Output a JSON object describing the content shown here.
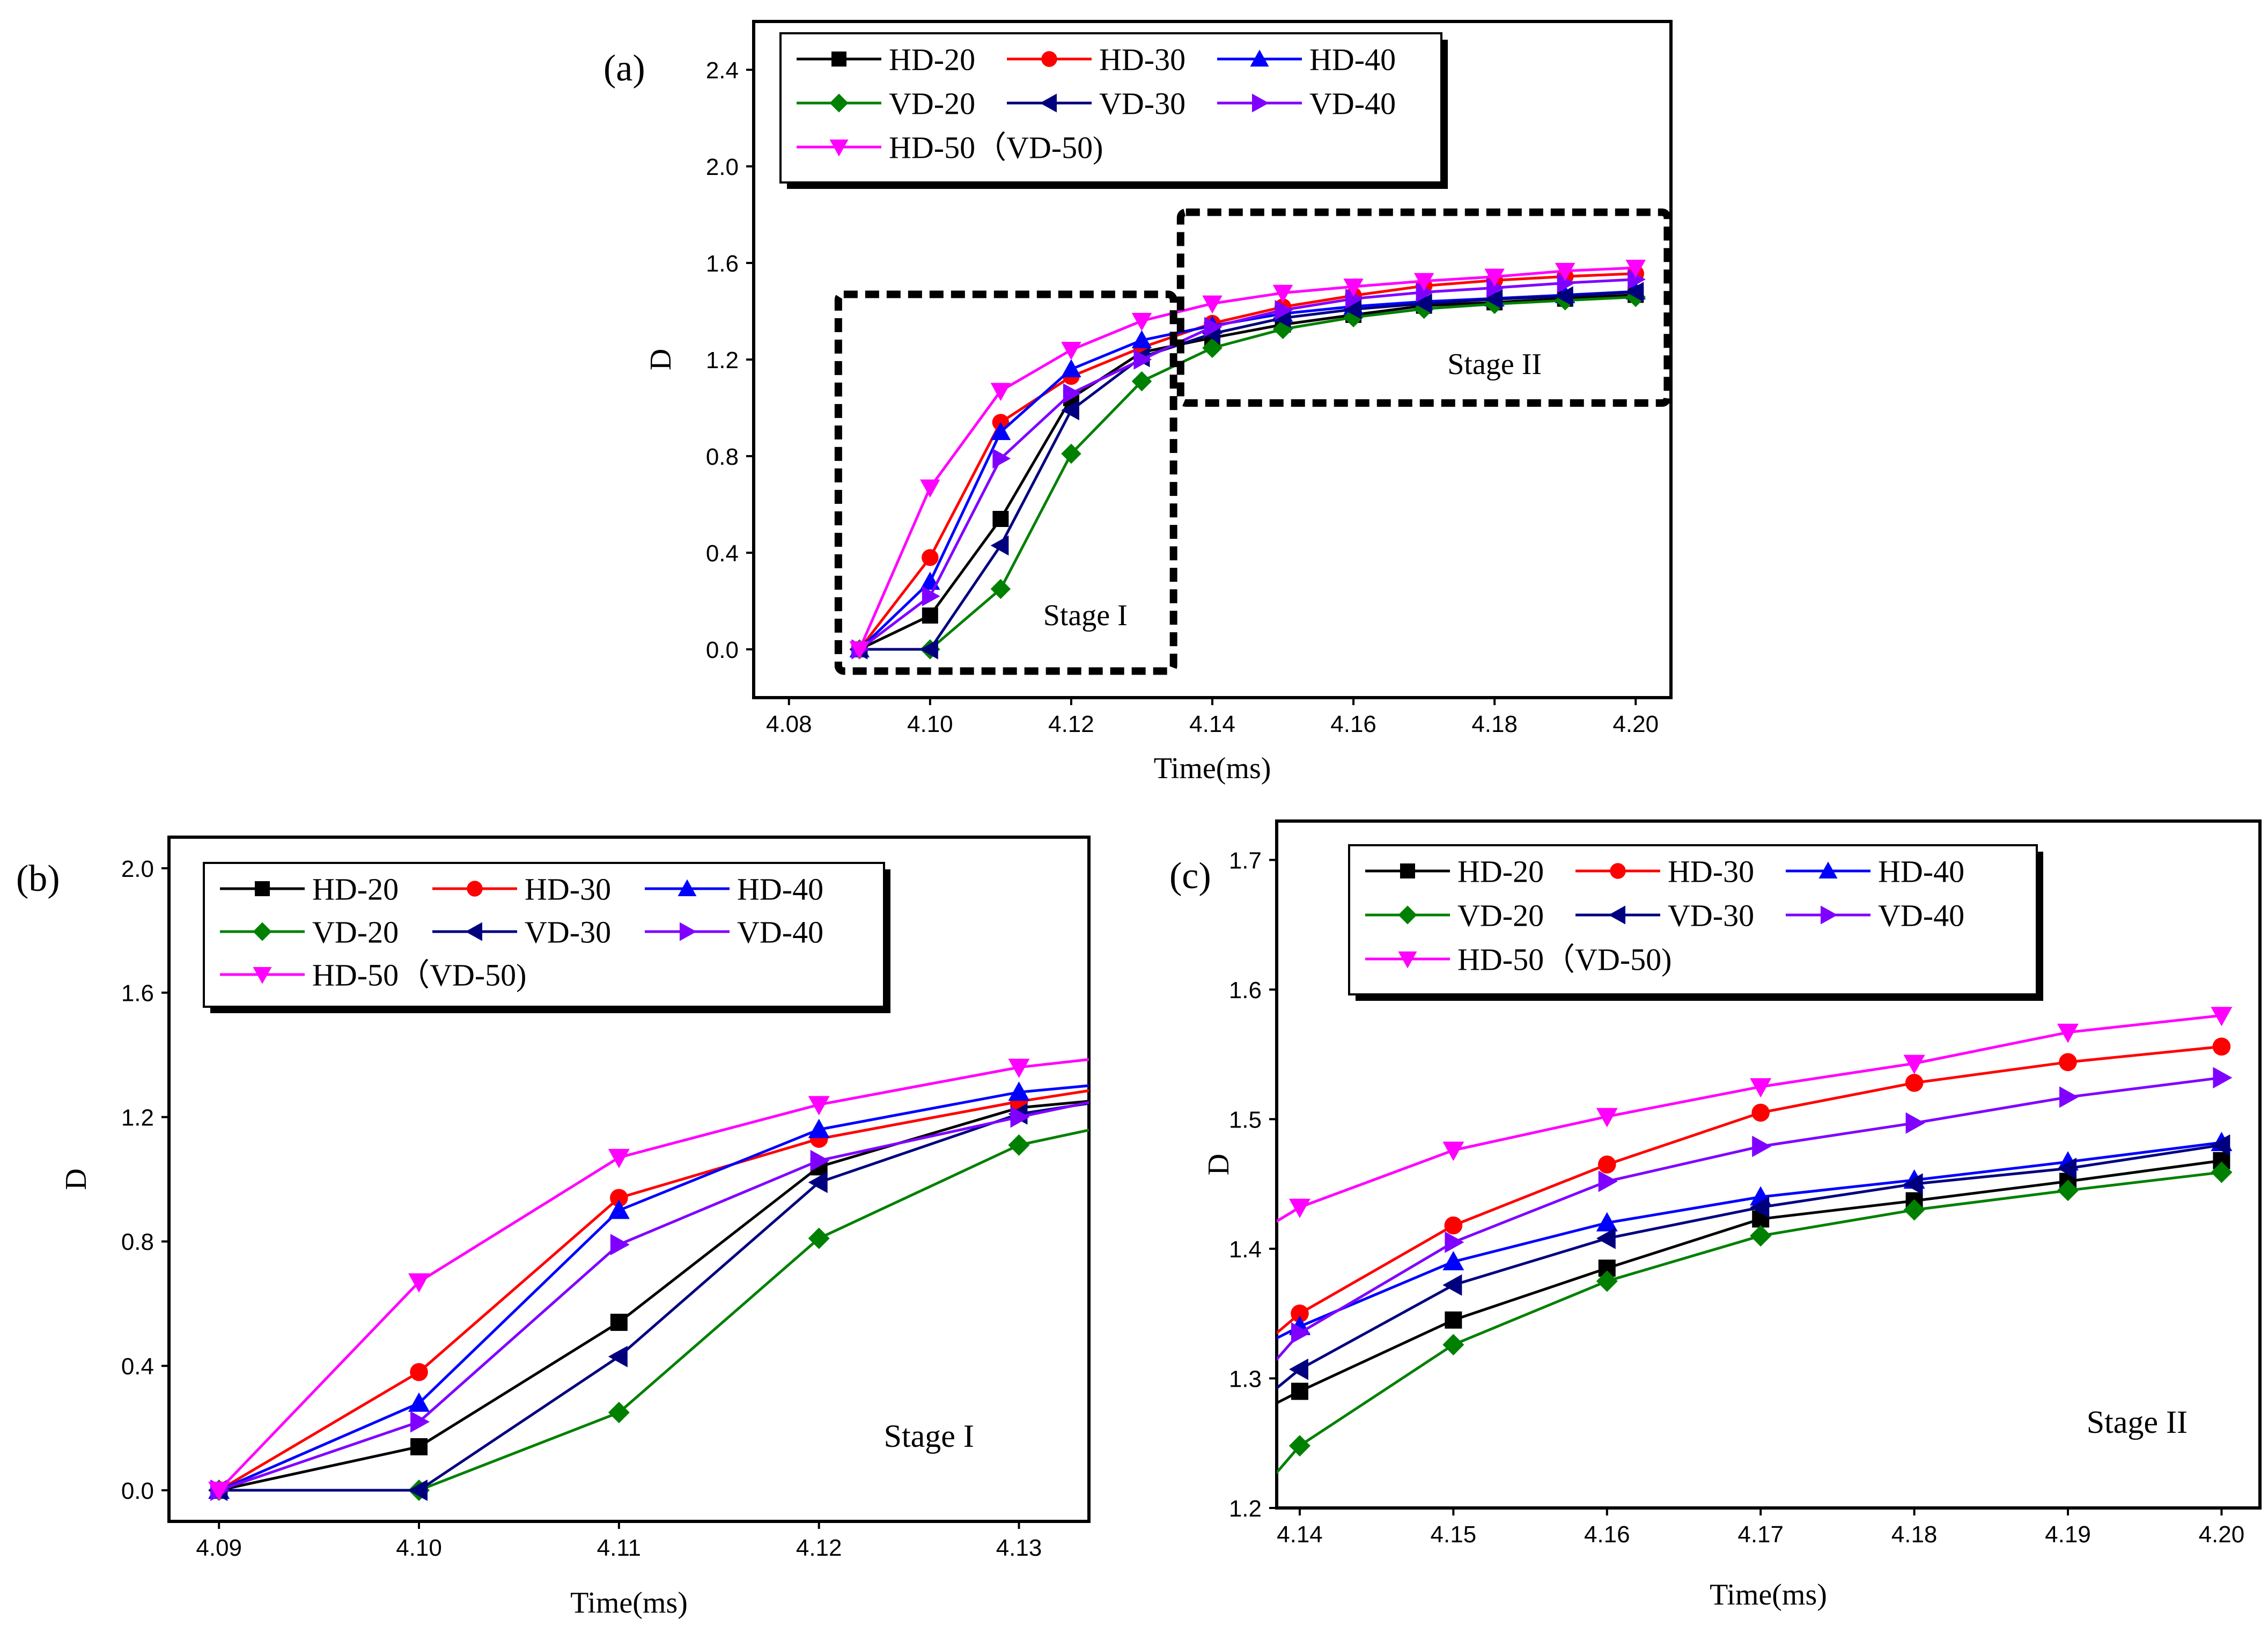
{
  "colors": {
    "HD-20": "#000000",
    "HD-30": "#ff0000",
    "HD-40": "#0000ff",
    "VD-20": "#008000",
    "VD-30": "#00007f",
    "VD-40": "#8000ff",
    "HD-50": "#ff00ff",
    "stage_label": "#ff0000",
    "stage_box": "#000000"
  },
  "markers": {
    "HD-20": "square",
    "HD-30": "circle",
    "HD-40": "triangle-up",
    "VD-20": "diamond",
    "VD-30": "triangle-left",
    "VD-40": "triangle-right",
    "HD-50": "triangle-down"
  },
  "chart_data": [
    {
      "panel": "(a)",
      "type": "line",
      "xlabel": "Time(ms)",
      "ylabel": "D",
      "xlim": [
        4.075,
        4.205
      ],
      "ylim": [
        -0.2,
        2.6
      ],
      "xticks": [
        "4.08",
        "4.10",
        "4.12",
        "4.14",
        "4.16",
        "4.18",
        "4.20"
      ],
      "yticks": [
        "0.0",
        "0.4",
        "0.8",
        "1.2",
        "1.6",
        "2.0",
        "2.4"
      ],
      "legend": [
        "HD-20",
        "HD-30",
        "HD-40",
        "VD-20",
        "VD-30",
        "VD-40",
        "HD-50（VD-50)"
      ],
      "legend_position": "top-left",
      "annotations": [
        {
          "text": "Stage I",
          "x": 4.122,
          "y": 0.1
        },
        {
          "text": "Stage II",
          "x": 4.18,
          "y": 1.14
        }
      ],
      "boxes": [
        {
          "x0": 4.087,
          "x1": 4.1345,
          "y0": -0.09,
          "y1": 1.47
        },
        {
          "x0": 4.1355,
          "x1": 4.2045,
          "y0": 1.02,
          "y1": 1.81
        }
      ],
      "x": [
        4.09,
        4.1,
        4.11,
        4.12,
        4.13,
        4.14,
        4.15,
        4.16,
        4.17,
        4.18,
        4.19,
        4.2
      ],
      "series": [
        {
          "name": "HD-20",
          "values": [
            0,
            0.14,
            0.54,
            1.04,
            1.23,
            1.29,
            1.345,
            1.385,
            1.423,
            1.437,
            1.452,
            1.468
          ]
        },
        {
          "name": "HD-30",
          "values": [
            0,
            0.38,
            0.94,
            1.13,
            1.25,
            1.35,
            1.418,
            1.465,
            1.505,
            1.528,
            1.544,
            1.556
          ]
        },
        {
          "name": "HD-40",
          "values": [
            0,
            0.28,
            0.9,
            1.16,
            1.28,
            1.34,
            1.39,
            1.42,
            1.44,
            1.453,
            1.467,
            1.482
          ]
        },
        {
          "name": "VD-20",
          "values": [
            0,
            0,
            0.25,
            0.81,
            1.11,
            1.248,
            1.326,
            1.375,
            1.41,
            1.43,
            1.445,
            1.459
          ]
        },
        {
          "name": "VD-30",
          "values": [
            0,
            0,
            0.43,
            0.99,
            1.21,
            1.307,
            1.372,
            1.408,
            1.432,
            1.45,
            1.462,
            1.48
          ]
        },
        {
          "name": "VD-40",
          "values": [
            0,
            0.22,
            0.79,
            1.06,
            1.2,
            1.335,
            1.405,
            1.452,
            1.479,
            1.497,
            1.517,
            1.532
          ]
        },
        {
          "name": "HD-50（VD-50)",
          "values": [
            0,
            0.67,
            1.07,
            1.24,
            1.36,
            1.432,
            1.476,
            1.502,
            1.525,
            1.543,
            1.567,
            1.58
          ]
        }
      ]
    },
    {
      "panel": "(b)",
      "type": "line",
      "xlabel": "Time(ms)",
      "ylabel": "D",
      "xlim": [
        4.0875,
        4.1335
      ],
      "ylim": [
        -0.1,
        2.1
      ],
      "xticks": [
        "4.09",
        "4.10",
        "4.11",
        "4.12",
        "4.13"
      ],
      "yticks": [
        "0.0",
        "0.4",
        "0.8",
        "1.2",
        "1.6",
        "2.0"
      ],
      "legend": [
        "HD-20",
        "HD-30",
        "HD-40",
        "VD-20",
        "VD-30",
        "VD-40",
        "HD-50（VD-50)"
      ],
      "legend_position": "top-left",
      "annotations": [
        {
          "text": "Stage I",
          "x": 4.1255,
          "y": 0.14
        }
      ],
      "x": [
        4.09,
        4.1,
        4.11,
        4.12,
        4.13,
        4.14
      ],
      "series": [
        {
          "name": "HD-20",
          "values": [
            0,
            0.14,
            0.54,
            1.04,
            1.23,
            1.29
          ]
        },
        {
          "name": "HD-30",
          "values": [
            0,
            0.38,
            0.94,
            1.13,
            1.25,
            1.35
          ]
        },
        {
          "name": "HD-40",
          "values": [
            0,
            0.28,
            0.9,
            1.16,
            1.28,
            1.34
          ]
        },
        {
          "name": "VD-20",
          "values": [
            0,
            0,
            0.25,
            0.81,
            1.11,
            1.248
          ]
        },
        {
          "name": "VD-30",
          "values": [
            0,
            0,
            0.43,
            0.99,
            1.21,
            1.307
          ]
        },
        {
          "name": "VD-40",
          "values": [
            0,
            0.22,
            0.79,
            1.06,
            1.2,
            1.335
          ]
        },
        {
          "name": "HD-50（VD-50)",
          "values": [
            0,
            0.67,
            1.07,
            1.24,
            1.36,
            1.432
          ]
        }
      ]
    },
    {
      "panel": "(c)",
      "type": "line",
      "xlabel": "Time(ms)",
      "ylabel": "D",
      "xlim": [
        4.1385,
        4.2025
      ],
      "ylim": [
        1.2,
        1.73
      ],
      "xticks": [
        "4.14",
        "4.15",
        "4.16",
        "4.17",
        "4.18",
        "4.19",
        "4.20"
      ],
      "yticks": [
        "1.2",
        "1.3",
        "1.4",
        "1.5",
        "1.6",
        "1.7"
      ],
      "legend": [
        "HD-20",
        "HD-30",
        "HD-40",
        "VD-20",
        "VD-30",
        "VD-40",
        "HD-50（VD-50)"
      ],
      "legend_position": "top-left",
      "annotations": [
        {
          "text": "Stage II",
          "x": 4.1945,
          "y": 1.258
        }
      ],
      "x": [
        4.13,
        4.14,
        4.15,
        4.16,
        4.17,
        4.18,
        4.19,
        4.2
      ],
      "series": [
        {
          "name": "HD-20",
          "values": [
            1.23,
            1.29,
            1.345,
            1.385,
            1.423,
            1.437,
            1.452,
            1.468
          ]
        },
        {
          "name": "HD-30",
          "values": [
            1.25,
            1.35,
            1.418,
            1.465,
            1.505,
            1.528,
            1.544,
            1.556
          ]
        },
        {
          "name": "HD-40",
          "values": [
            1.28,
            1.34,
            1.39,
            1.42,
            1.44,
            1.453,
            1.467,
            1.482
          ]
        },
        {
          "name": "VD-20",
          "values": [
            1.11,
            1.248,
            1.326,
            1.375,
            1.41,
            1.43,
            1.445,
            1.459
          ]
        },
        {
          "name": "VD-30",
          "values": [
            1.21,
            1.307,
            1.372,
            1.408,
            1.432,
            1.45,
            1.462,
            1.48
          ]
        },
        {
          "name": "VD-40",
          "values": [
            1.2,
            1.335,
            1.405,
            1.452,
            1.479,
            1.497,
            1.517,
            1.532
          ]
        },
        {
          "name": "HD-50（VD-50)",
          "values": [
            1.36,
            1.432,
            1.476,
            1.502,
            1.525,
            1.543,
            1.567,
            1.58
          ]
        }
      ]
    }
  ]
}
